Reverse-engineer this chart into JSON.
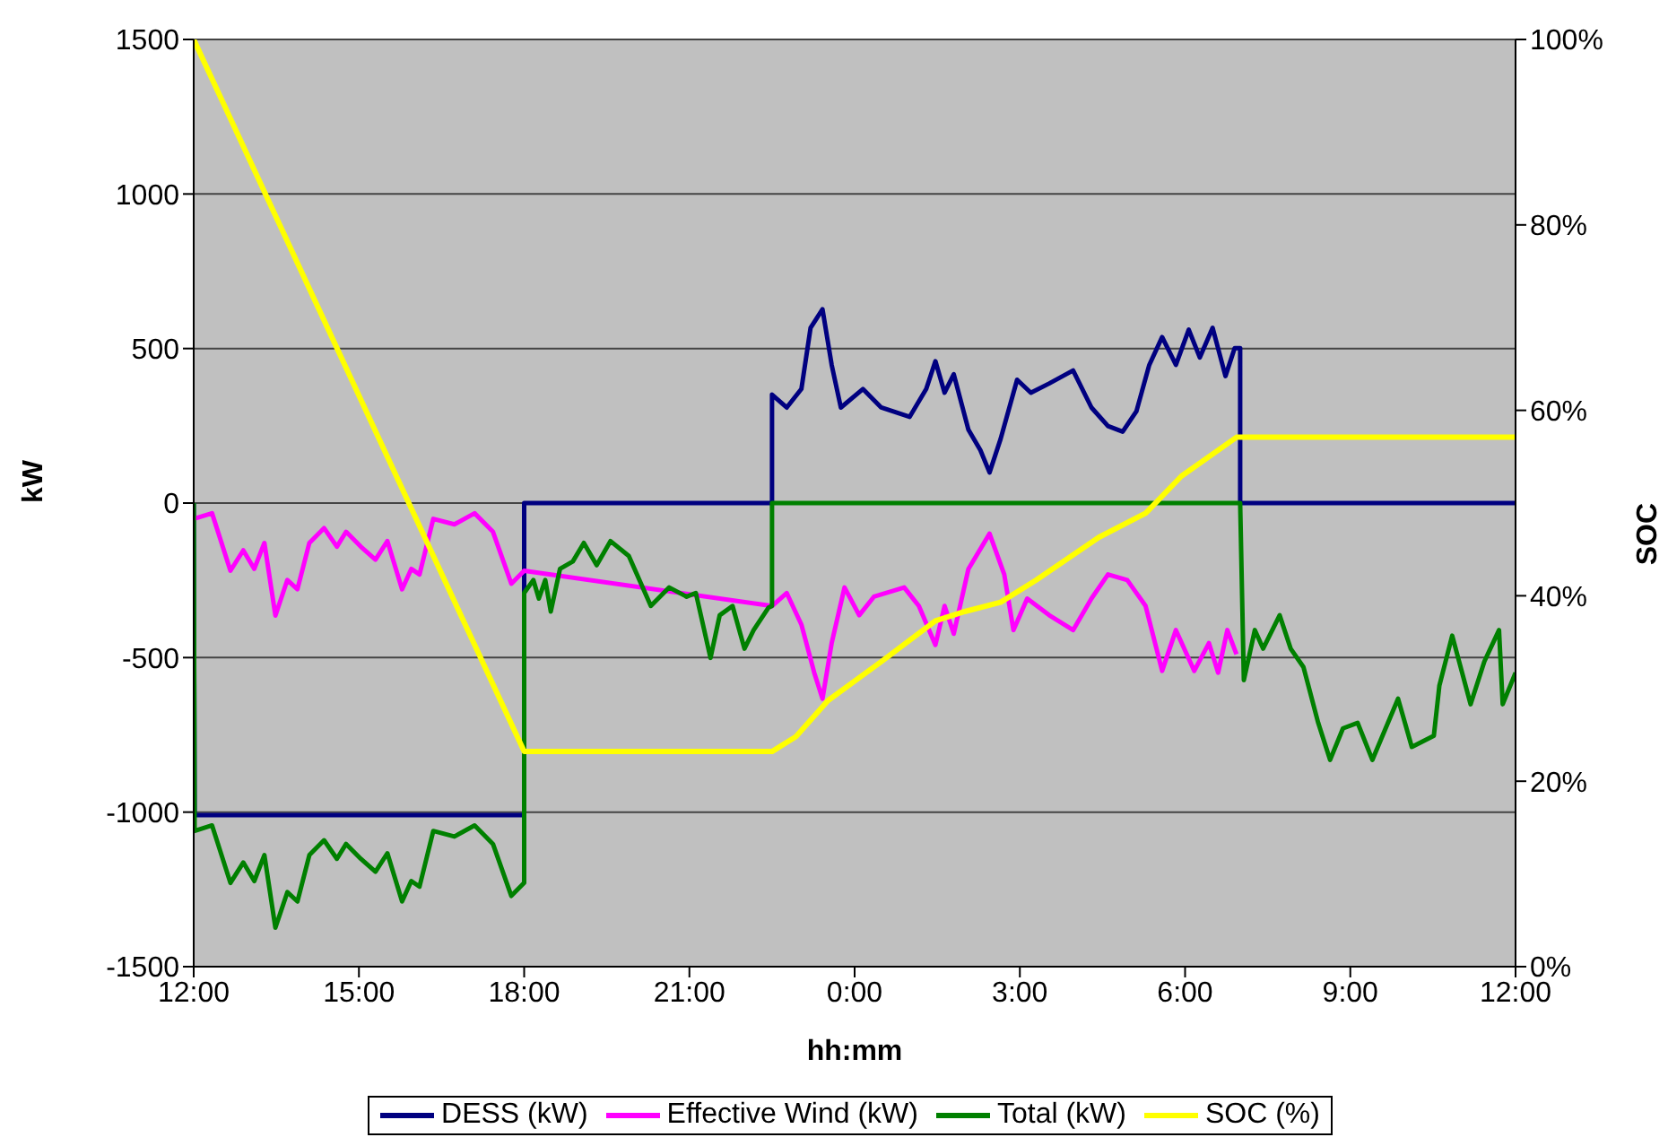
{
  "chart_data": {
    "type": "line",
    "xlabel": "hh:mm",
    "ylabel": "kW",
    "y2label": "SOC",
    "xlim": [
      "2000-01-01T12:00",
      "2000-01-02T12:00"
    ],
    "xticks": [
      {
        "value": "2000-01-01T12:00",
        "label": "12:00"
      },
      {
        "value": "2000-01-01T15:00",
        "label": "15:00"
      },
      {
        "value": "2000-01-01T18:00",
        "label": "18:00"
      },
      {
        "value": "2000-01-01T21:00",
        "label": "21:00"
      },
      {
        "value": "2000-01-02T00:00",
        "label": "0:00"
      },
      {
        "value": "2000-01-02T03:00",
        "label": "3:00"
      },
      {
        "value": "2000-01-02T06:00",
        "label": "6:00"
      },
      {
        "value": "2000-01-02T09:00",
        "label": "9:00"
      },
      {
        "value": "2000-01-02T12:00",
        "label": "12:00"
      }
    ],
    "ylim": [
      -1500,
      1500
    ],
    "yticks": [
      -1500,
      -1000,
      -500,
      0,
      500,
      1000,
      1500
    ],
    "y2lim": [
      0,
      100
    ],
    "y2ticks": [
      {
        "value": 0,
        "label": "0%"
      },
      {
        "value": 20,
        "label": "20%"
      },
      {
        "value": 40,
        "label": "40%"
      },
      {
        "value": 60,
        "label": "60%"
      },
      {
        "value": 80,
        "label": "80%"
      },
      {
        "value": 100,
        "label": "100%"
      }
    ],
    "grid": "y",
    "legend": "bottom",
    "marker": "none",
    "line_style": "solid",
    "series": [
      {
        "name": "DESS (kW)",
        "color": "#000080",
        "x": [
          "2000-01-01T12:00",
          "2000-01-01T12:01",
          "2000-01-01T18:00",
          "2000-01-01T18:00",
          "2000-01-01T22:30",
          "2000-01-01T22:30",
          "2000-01-01T22:46",
          "2000-01-01T23:02",
          "2000-01-01T23:12",
          "2000-01-01T23:25",
          "2000-01-01T23:35",
          "2000-01-01T23:45",
          "2000-01-02T00:09",
          "2000-01-02T00:29",
          "2000-01-02T01:00",
          "2000-01-02T01:18",
          "2000-01-02T01:28",
          "2000-01-02T01:38",
          "2000-01-02T01:48",
          "2000-01-02T02:04",
          "2000-01-02T02:17",
          "2000-01-02T02:27",
          "2000-01-02T02:39",
          "2000-01-02T02:57",
          "2000-01-02T03:12",
          "2000-01-02T03:32",
          "2000-01-02T03:58",
          "2000-01-02T04:18",
          "2000-01-02T04:36",
          "2000-01-02T04:52",
          "2000-01-02T05:07",
          "2000-01-02T05:21",
          "2000-01-02T05:35",
          "2000-01-02T05:50",
          "2000-01-02T06:04",
          "2000-01-02T06:16",
          "2000-01-02T06:30",
          "2000-01-02T06:44",
          "2000-01-02T06:54",
          "2000-01-02T07:00",
          "2000-01-02T07:00",
          "2000-01-02T12:00"
        ],
        "values": [
          0,
          -1010,
          -1010,
          0,
          0,
          351,
          309,
          369,
          567,
          627,
          447,
          309,
          369,
          309,
          279,
          369,
          459,
          357,
          417,
          237,
          171,
          99,
          207,
          399,
          357,
          387,
          429,
          309,
          249,
          231,
          297,
          447,
          537,
          447,
          561,
          471,
          567,
          411,
          501,
          501,
          0,
          0
        ]
      },
      {
        "name": "Effective Wind (kW)",
        "color": "#ff00ff",
        "x": [
          "2000-01-01T12:00",
          "2000-01-01T12:20",
          "2000-01-01T12:40",
          "2000-01-01T12:54",
          "2000-01-01T13:06",
          "2000-01-01T13:17",
          "2000-01-01T13:29",
          "2000-01-01T13:42",
          "2000-01-01T13:53",
          "2000-01-01T14:06",
          "2000-01-01T14:22",
          "2000-01-01T14:36",
          "2000-01-01T14:46",
          "2000-01-01T15:02",
          "2000-01-01T15:18",
          "2000-01-01T15:31",
          "2000-01-01T15:47",
          "2000-01-01T15:57",
          "2000-01-01T16:06",
          "2000-01-01T16:21",
          "2000-01-01T16:44",
          "2000-01-01T17:06",
          "2000-01-01T17:26",
          "2000-01-01T17:46",
          "2000-01-01T18:00",
          "2000-01-01T22:30",
          "2000-01-01T22:46",
          "2000-01-01T23:02",
          "2000-01-01T23:16",
          "2000-01-01T23:25",
          "2000-01-01T23:35",
          "2000-01-01T23:49",
          "2000-01-02T00:05",
          "2000-01-02T00:21",
          "2000-01-02T00:54",
          "2000-01-02T01:10",
          "2000-01-02T01:28",
          "2000-01-02T01:38",
          "2000-01-02T01:48",
          "2000-01-02T02:04",
          "2000-01-02T02:27",
          "2000-01-02T02:43",
          "2000-01-02T02:53",
          "2000-01-02T03:08",
          "2000-01-02T03:32",
          "2000-01-02T03:58",
          "2000-01-02T04:18",
          "2000-01-02T04:36",
          "2000-01-02T04:57",
          "2000-01-02T05:17",
          "2000-01-02T05:35",
          "2000-01-02T05:50",
          "2000-01-02T06:10",
          "2000-01-02T06:26",
          "2000-01-02T06:36",
          "2000-01-02T06:46",
          "2000-01-02T06:56"
        ],
        "values": [
          -51,
          -33,
          -219,
          -153,
          -213,
          -129,
          -364,
          -249,
          -279,
          -129,
          -81,
          -141,
          -93,
          -141,
          -183,
          -123,
          -279,
          -213,
          -231,
          -51,
          -69,
          -33,
          -93,
          -261,
          -219,
          -333,
          -291,
          -393,
          -549,
          -633,
          -453,
          -273,
          -363,
          -303,
          -273,
          -333,
          -459,
          -333,
          -423,
          -213,
          -99,
          -231,
          -411,
          -309,
          -363,
          -411,
          -309,
          -231,
          -249,
          -333,
          -543,
          -411,
          -543,
          -453,
          -549,
          -411,
          -489
        ]
      },
      {
        "name": "Total (kW)",
        "color": "#008000",
        "x": [
          "2000-01-01T12:00",
          "2000-01-01T12:01",
          "2000-01-01T12:20",
          "2000-01-01T12:40",
          "2000-01-01T12:54",
          "2000-01-01T13:06",
          "2000-01-01T13:17",
          "2000-01-01T13:29",
          "2000-01-01T13:42",
          "2000-01-01T13:53",
          "2000-01-01T14:06",
          "2000-01-01T14:22",
          "2000-01-01T14:36",
          "2000-01-01T14:46",
          "2000-01-01T15:02",
          "2000-01-01T15:18",
          "2000-01-01T15:31",
          "2000-01-01T15:47",
          "2000-01-01T15:57",
          "2000-01-01T16:06",
          "2000-01-01T16:21",
          "2000-01-01T16:44",
          "2000-01-01T17:06",
          "2000-01-01T17:26",
          "2000-01-01T17:46",
          "2000-01-01T18:00",
          "2000-01-01T18:00",
          "2000-01-01T18:10",
          "2000-01-01T18:16",
          "2000-01-01T18:23",
          "2000-01-01T18:29",
          "2000-01-01T18:39",
          "2000-01-01T18:53",
          "2000-01-01T19:05",
          "2000-01-01T19:19",
          "2000-01-01T19:34",
          "2000-01-01T19:54",
          "2000-01-01T20:18",
          "2000-01-01T20:38",
          "2000-01-01T20:57",
          "2000-01-01T21:07",
          "2000-01-01T21:23",
          "2000-01-01T21:33",
          "2000-01-01T21:47",
          "2000-01-01T22:00",
          "2000-01-01T22:10",
          "2000-01-01T22:26",
          "2000-01-01T22:30",
          "2000-01-01T22:30",
          "2000-01-02T07:00",
          "2000-01-02T07:04",
          "2000-01-02T07:16",
          "2000-01-02T07:25",
          "2000-01-02T07:43",
          "2000-01-02T07:55",
          "2000-01-02T08:09",
          "2000-01-02T08:25",
          "2000-01-02T08:38",
          "2000-01-02T08:52",
          "2000-01-02T09:08",
          "2000-01-02T09:24",
          "2000-01-02T09:52",
          "2000-01-02T10:07",
          "2000-01-02T10:31",
          "2000-01-02T10:37",
          "2000-01-02T10:51",
          "2000-01-02T11:11",
          "2000-01-02T11:26",
          "2000-01-02T11:42",
          "2000-01-02T11:46",
          "2000-01-02T12:00"
        ],
        "values": [
          0,
          -1061,
          -1043,
          -1229,
          -1163,
          -1223,
          -1139,
          -1374,
          -1259,
          -1289,
          -1139,
          -1091,
          -1151,
          -1103,
          -1151,
          -1193,
          -1133,
          -1289,
          -1223,
          -1241,
          -1061,
          -1079,
          -1043,
          -1103,
          -1271,
          -1229,
          -291,
          -249,
          -309,
          -249,
          -351,
          -213,
          -189,
          -129,
          -201,
          -123,
          -171,
          -333,
          -273,
          -303,
          -291,
          -501,
          -363,
          -333,
          -471,
          -411,
          -339,
          -333,
          0,
          0,
          -573,
          -411,
          -471,
          -363,
          -471,
          -531,
          -711,
          -831,
          -729,
          -711,
          -831,
          -633,
          -789,
          -753,
          -591,
          -429,
          -651,
          -513,
          -411,
          -651,
          -549
        ]
      },
      {
        "name": "SOC (%)",
        "color": "#ffff00",
        "axis": "y2",
        "x": [
          "2000-01-01T12:00",
          "2000-01-01T18:00",
          "2000-01-01T22:30",
          "2000-01-01T22:56",
          "2000-01-01T23:31",
          "2000-01-02T00:29",
          "2000-01-02T01:28",
          "2000-01-02T02:00",
          "2000-01-02T02:39",
          "2000-01-02T03:18",
          "2000-01-02T04:26",
          "2000-01-02T05:17",
          "2000-01-02T05:56",
          "2000-01-02T06:56",
          "2000-01-02T12:00"
        ],
        "values": [
          100,
          23.2,
          23.2,
          24.8,
          28.7,
          32.9,
          37.3,
          38.3,
          39.3,
          41.7,
          46.3,
          48.9,
          52.9,
          57.1,
          57.1
        ]
      }
    ]
  }
}
